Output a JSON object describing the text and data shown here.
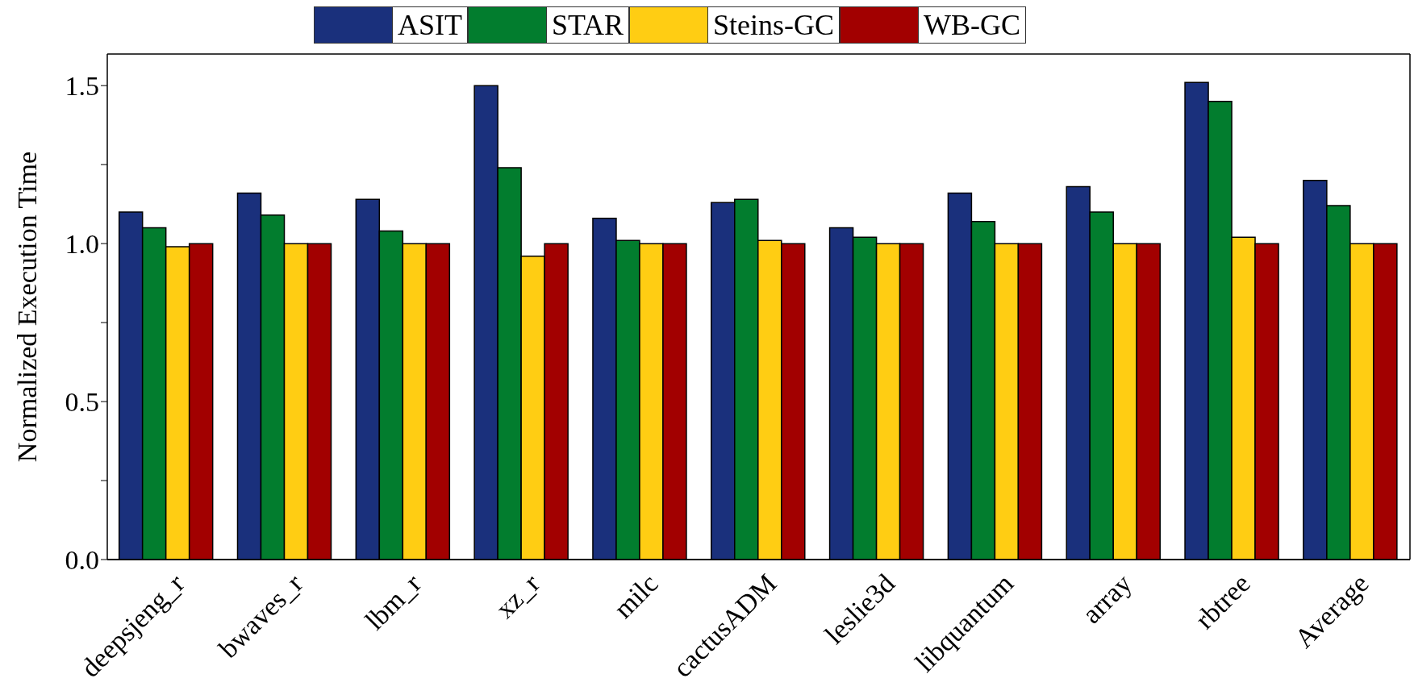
{
  "chart_data": {
    "type": "bar",
    "ylabel": "Normalized Execution Time",
    "categories": [
      "deepsjeng_r",
      "bwaves_r",
      "lbm_r",
      "xz_r",
      "milc",
      "cactusADM",
      "leslie3d",
      "libquantum",
      "array",
      "rbtree",
      "Average"
    ],
    "series": [
      {
        "name": "ASIT",
        "color": "#1a307c",
        "values": [
          1.1,
          1.16,
          1.14,
          1.5,
          1.08,
          1.13,
          1.05,
          1.16,
          1.18,
          1.51,
          1.2
        ]
      },
      {
        "name": "STAR",
        "color": "#027d2e",
        "values": [
          1.05,
          1.09,
          1.04,
          1.24,
          1.01,
          1.14,
          1.02,
          1.07,
          1.1,
          1.45,
          1.12
        ]
      },
      {
        "name": "Steins-GC",
        "color": "#ffcd13",
        "values": [
          0.99,
          1.0,
          1.0,
          0.96,
          1.0,
          1.01,
          1.0,
          1.0,
          1.0,
          1.02,
          1.0
        ]
      },
      {
        "name": "WB-GC",
        "color": "#a20000",
        "values": [
          1.0,
          1.0,
          1.0,
          1.0,
          1.0,
          1.0,
          1.0,
          1.0,
          1.0,
          1.0,
          1.0
        ]
      }
    ],
    "ylim": [
      0,
      1.6
    ],
    "yticks": [
      {
        "value": 0,
        "label": "0.0"
      },
      {
        "value": 0.25,
        "label": null
      },
      0.5,
      {
        "value": 0.75,
        "label": null
      },
      {
        "value": 1,
        "label": "1.0"
      },
      {
        "value": 1.25,
        "label": null
      },
      1.5
    ],
    "grid": false,
    "legend": "top"
  }
}
